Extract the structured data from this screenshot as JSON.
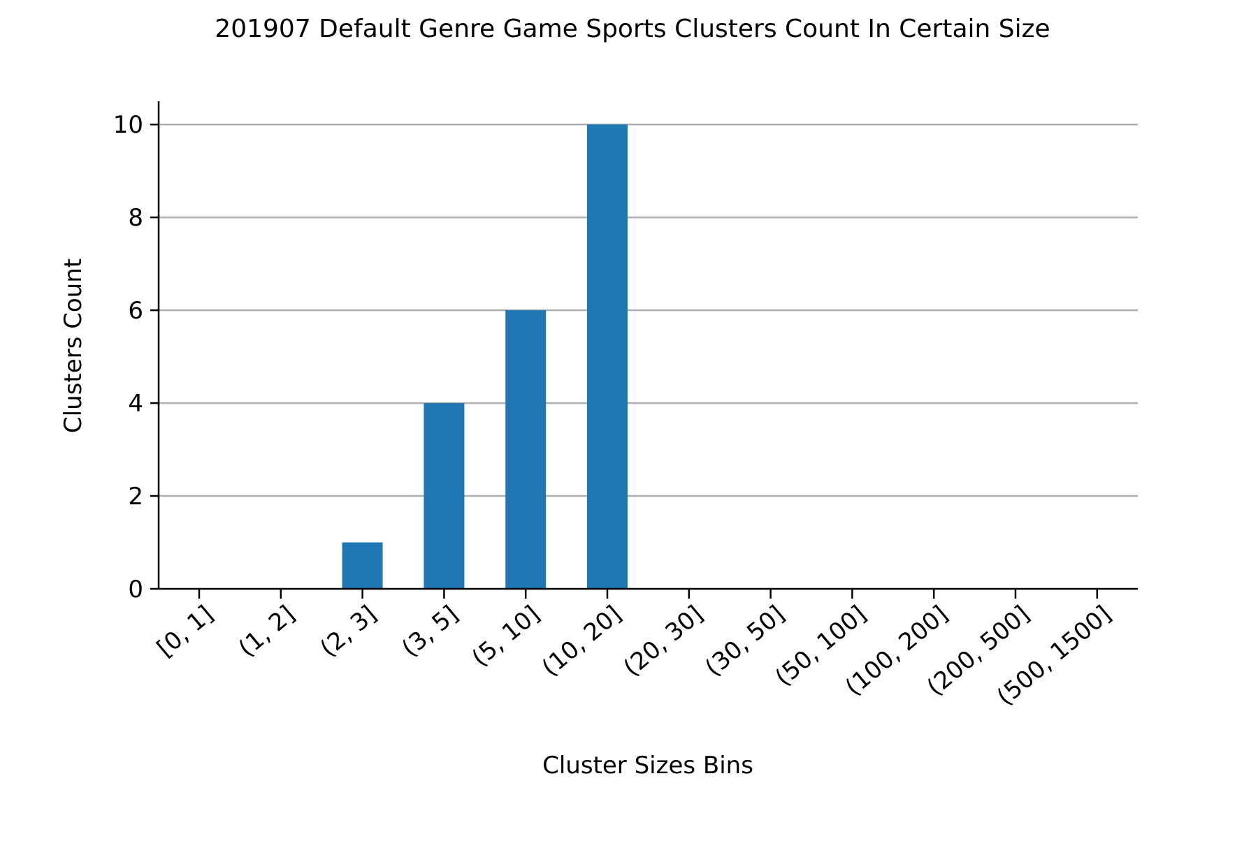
{
  "chart_data": {
    "type": "bar",
    "title": "201907 Default Genre Game Sports Clusters Count In Certain Size",
    "xlabel": "Cluster Sizes Bins",
    "ylabel": "Clusters Count",
    "categories": [
      "[0, 1]",
      "(1, 2]",
      "(2, 3]",
      "(3, 5]",
      "(5, 10]",
      "(10, 20]",
      "(20, 30]",
      "(30, 50]",
      "(50, 100]",
      "(100, 200]",
      "(200, 500]",
      "(500, 1500]"
    ],
    "values": [
      0,
      0,
      1,
      4,
      6,
      10,
      0,
      0,
      0,
      0,
      0,
      0
    ],
    "ylim": [
      0,
      10.5
    ],
    "yticks": [
      0,
      2,
      4,
      6,
      8,
      10
    ],
    "grid": "horizontal",
    "bar_color": "#1f77b4",
    "grid_color": "#b0b0b0"
  }
}
